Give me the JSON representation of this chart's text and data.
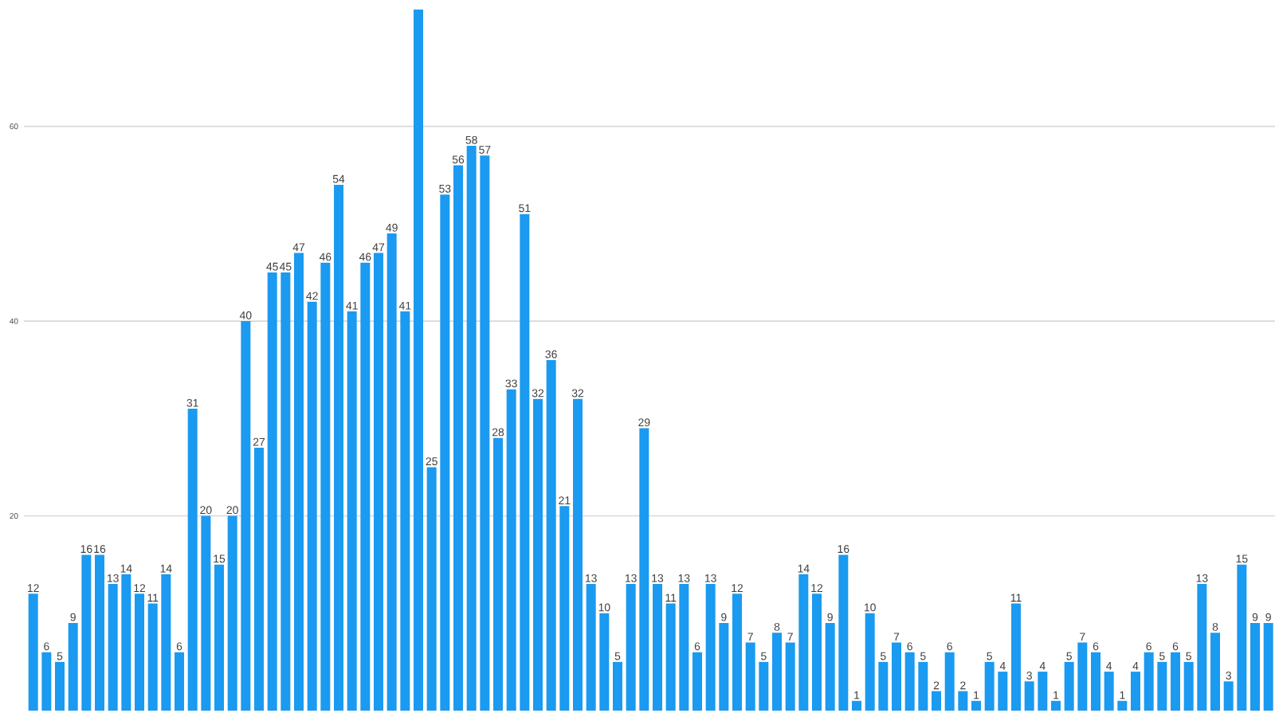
{
  "chart_data": {
    "type": "bar",
    "categories": [
      null,
      null,
      null,
      null,
      null,
      null,
      null,
      null,
      null,
      null,
      null,
      null,
      null,
      null,
      null,
      null,
      null,
      null,
      null,
      null,
      null,
      null,
      null,
      null,
      null,
      null,
      null,
      null,
      null,
      null,
      null,
      null,
      null,
      null,
      null,
      null,
      null,
      null,
      null,
      null,
      null,
      null,
      null,
      null,
      null,
      null,
      null,
      null,
      null,
      null,
      null,
      null,
      null,
      null,
      null,
      null,
      null,
      null,
      null,
      null,
      null,
      null,
      null,
      null,
      null,
      null,
      null,
      null,
      null,
      null,
      null,
      null,
      null,
      null,
      null,
      null,
      null,
      null,
      null,
      null,
      null,
      null,
      null,
      null,
      null,
      null,
      null,
      null,
      null,
      null,
      null,
      null,
      null,
      null
    ],
    "values": [
      12,
      6,
      5,
      9,
      16,
      16,
      13,
      14,
      12,
      11,
      14,
      6,
      31,
      20,
      15,
      20,
      40,
      27,
      45,
      45,
      47,
      42,
      46,
      54,
      41,
      46,
      47,
      49,
      41,
      72,
      25,
      53,
      56,
      58,
      57,
      28,
      33,
      51,
      32,
      36,
      21,
      32,
      13,
      10,
      5,
      13,
      29,
      13,
      11,
      13,
      6,
      13,
      9,
      12,
      7,
      5,
      8,
      7,
      14,
      12,
      9,
      16,
      1,
      10,
      5,
      7,
      6,
      5,
      2,
      6,
      2,
      1,
      5,
      4,
      11,
      3,
      4,
      1,
      5,
      7,
      6,
      4,
      1,
      4,
      6,
      5,
      6,
      5,
      13,
      8,
      3,
      15,
      9,
      9
    ],
    "value_labels": [
      "12",
      "6",
      "5",
      "9",
      "16",
      "16",
      "13",
      "14",
      "12",
      "11",
      "14",
      "6",
      "31",
      "20",
      "15",
      "20",
      "40",
      "27",
      "45",
      "45",
      "47",
      "42",
      "46",
      "54",
      "41",
      "46",
      "47",
      "49",
      "41",
      null,
      "25",
      "53",
      "56",
      "58",
      "57",
      "28",
      "33",
      "51",
      "32",
      "36",
      "21",
      "32",
      "13",
      "10",
      "5",
      "13",
      "29",
      "13",
      "11",
      "13",
      "6",
      "13",
      "9",
      "12",
      "7",
      "5",
      "8",
      "7",
      "14",
      "12",
      "9",
      "16",
      "1",
      "10",
      "5",
      "7",
      "6",
      "5",
      "2",
      "6",
      "2",
      "1",
      "5",
      "4",
      "11",
      "3",
      "4",
      "1",
      "5",
      "7",
      "6",
      "4",
      "1",
      "4",
      "6",
      "5",
      "6",
      "5",
      "13",
      "8",
      "3",
      "15",
      "9",
      "9"
    ],
    "color": "#1a9af0",
    "ylim": [
      0,
      72
    ],
    "yticks": [
      20,
      40,
      60
    ],
    "grid": "y"
  }
}
